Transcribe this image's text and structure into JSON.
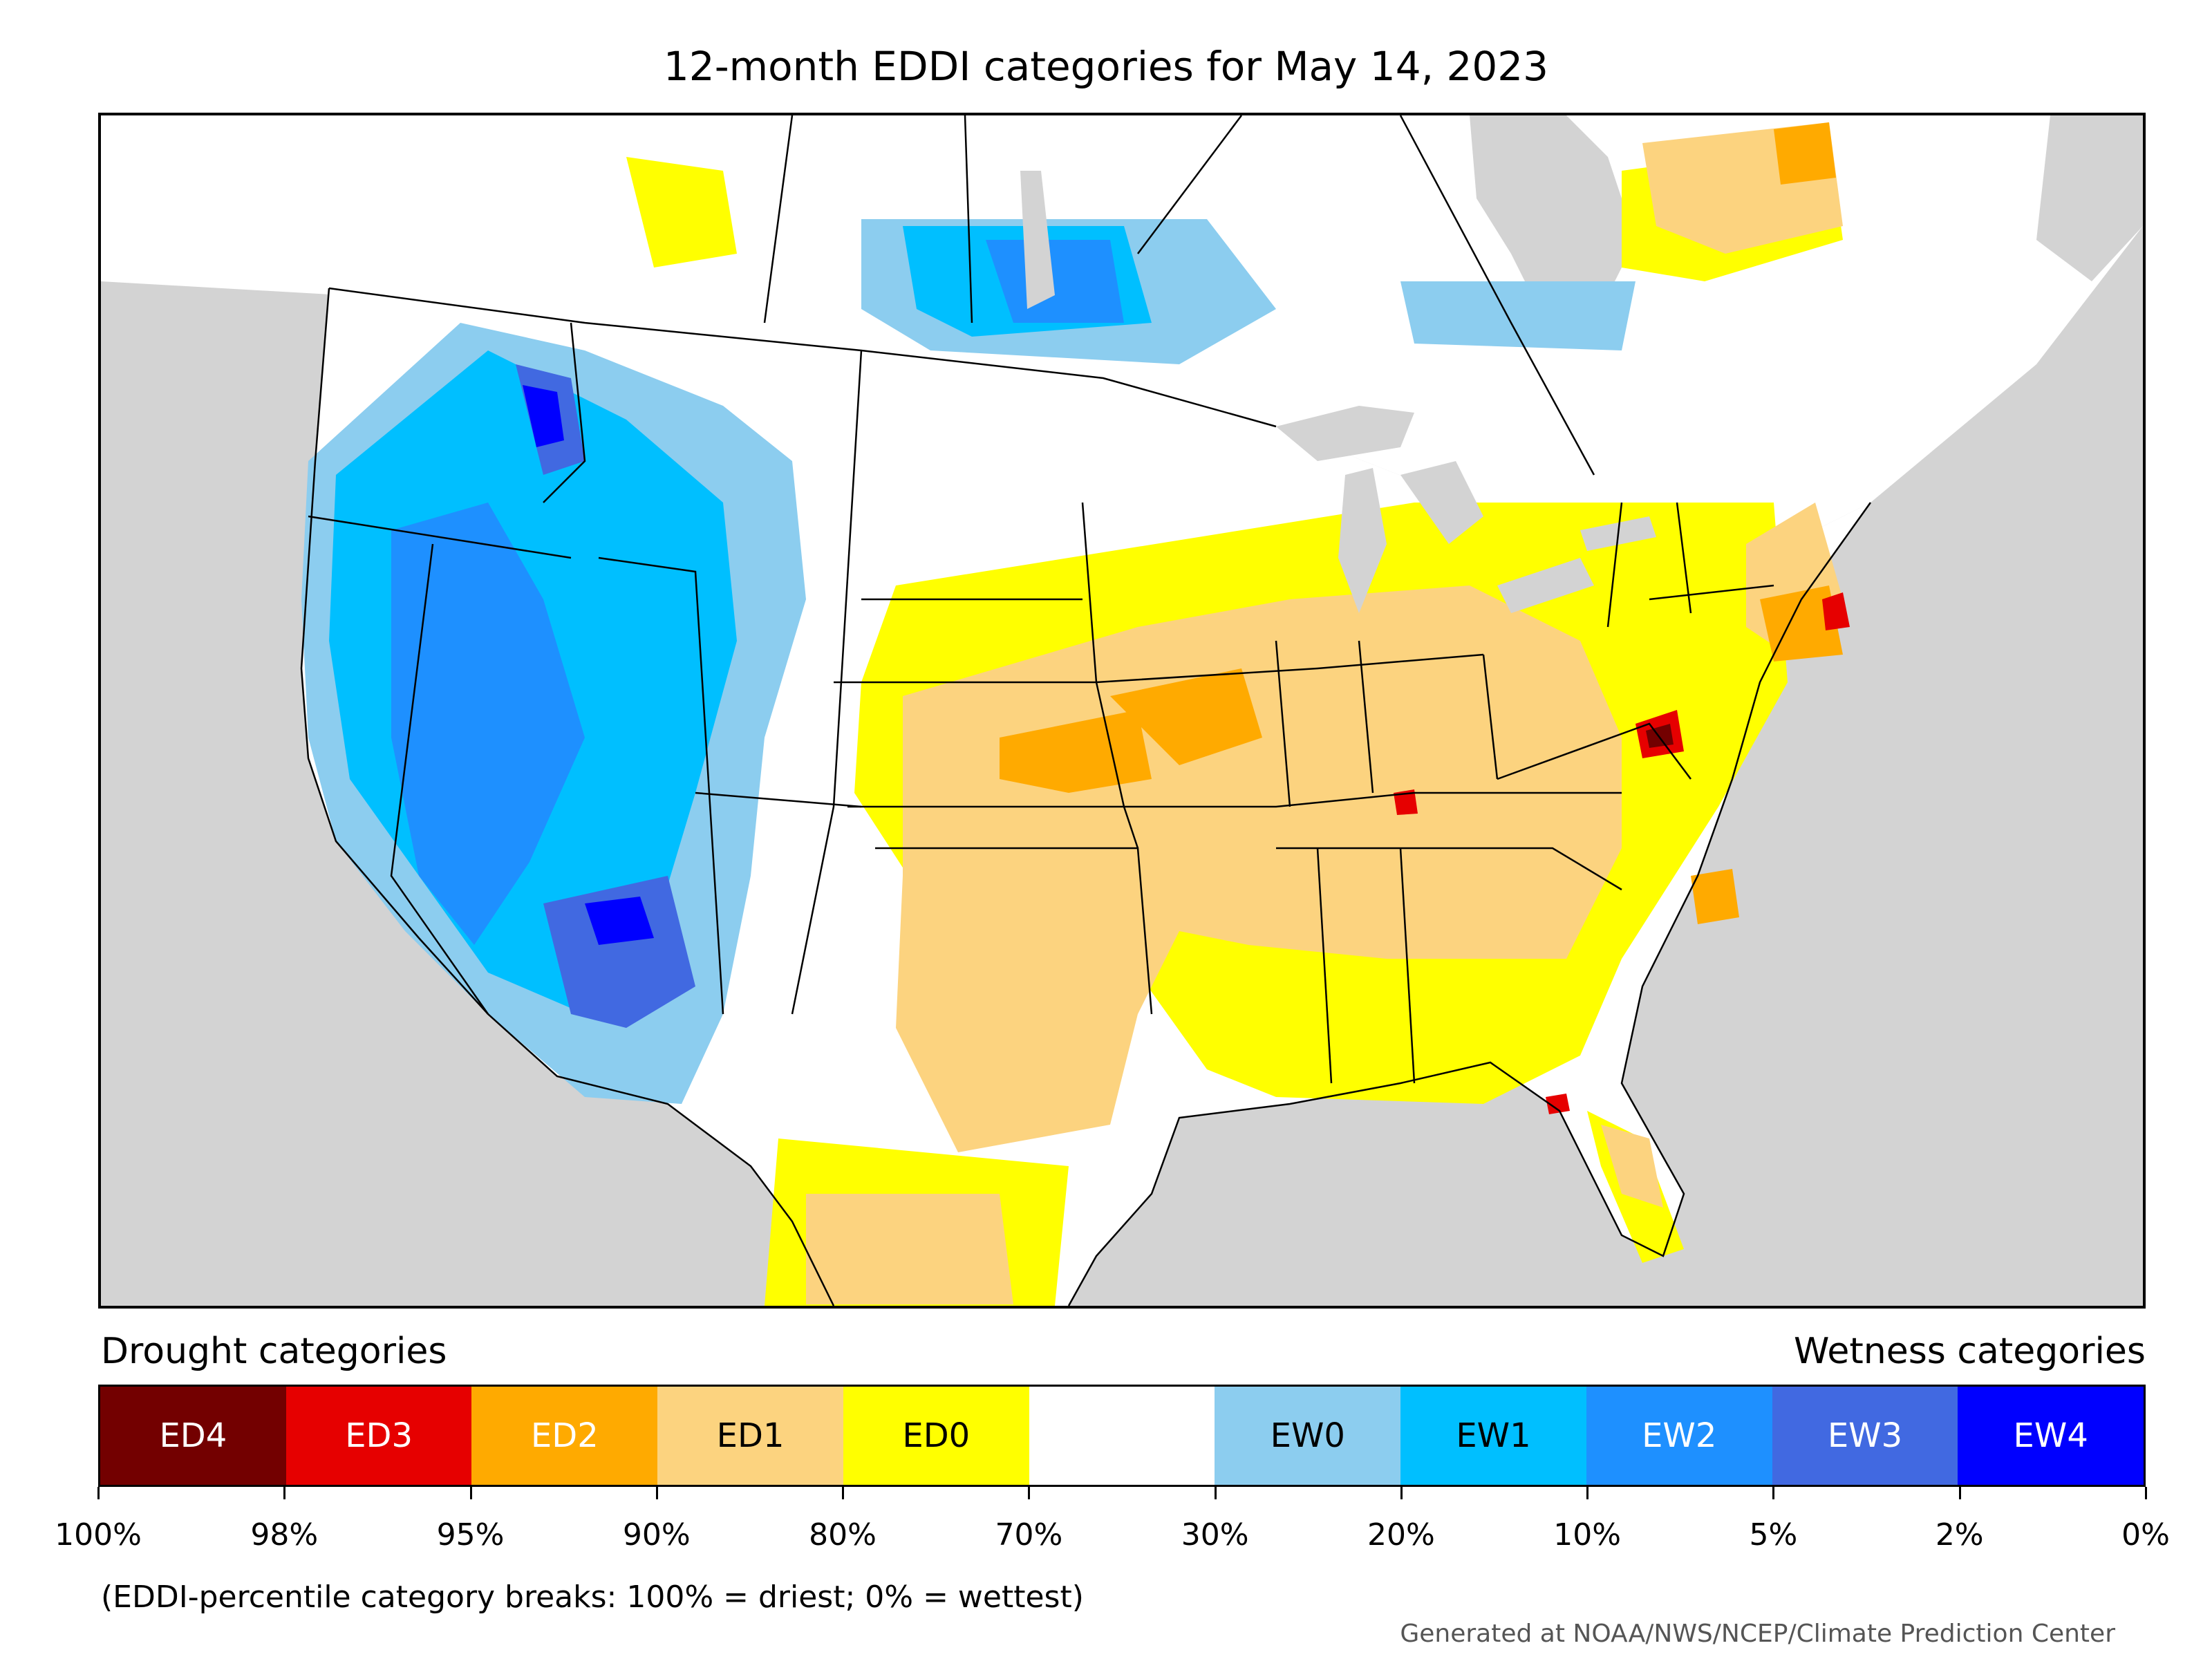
{
  "title": "12-month EDDI categories for May 14, 2023",
  "legend": {
    "drought_label": "Drought categories",
    "wetness_label": "Wetness categories",
    "categories": [
      {
        "label": "ED4",
        "color": "#730000",
        "text_color": "#ffffff"
      },
      {
        "label": "ED3",
        "color": "#e60000",
        "text_color": "#ffffff"
      },
      {
        "label": "ED2",
        "color": "#ffaa00",
        "text_color": "#ffffff"
      },
      {
        "label": "ED1",
        "color": "#fcd37f",
        "text_color": "#000000"
      },
      {
        "label": "ED0",
        "color": "#ffff00",
        "text_color": "#000000"
      },
      {
        "label": "",
        "color": "#ffffff",
        "text_color": "#000000"
      },
      {
        "label": "EW0",
        "color": "#8ccdef",
        "text_color": "#000000"
      },
      {
        "label": "EW1",
        "color": "#00bfff",
        "text_color": "#000000"
      },
      {
        "label": "EW2",
        "color": "#1e90ff",
        "text_color": "#ffffff"
      },
      {
        "label": "EW3",
        "color": "#4169e1",
        "text_color": "#ffffff"
      },
      {
        "label": "EW4",
        "color": "#0000ff",
        "text_color": "#ffffff"
      }
    ],
    "breaks": [
      "100%",
      "98%",
      "95%",
      "90%",
      "80%",
      "70%",
      "30%",
      "20%",
      "10%",
      "5%",
      "2%",
      "0%"
    ]
  },
  "note": "(EDDI-percentile category breaks: 100% = driest; 0% = wettest)",
  "credit": "Generated at NOAA/NWS/NCEP/Climate Prediction Center",
  "colors": {
    "background_land_outside": "#d3d3d3",
    "water": "#d3d3d3",
    "border_line": "#000000"
  }
}
